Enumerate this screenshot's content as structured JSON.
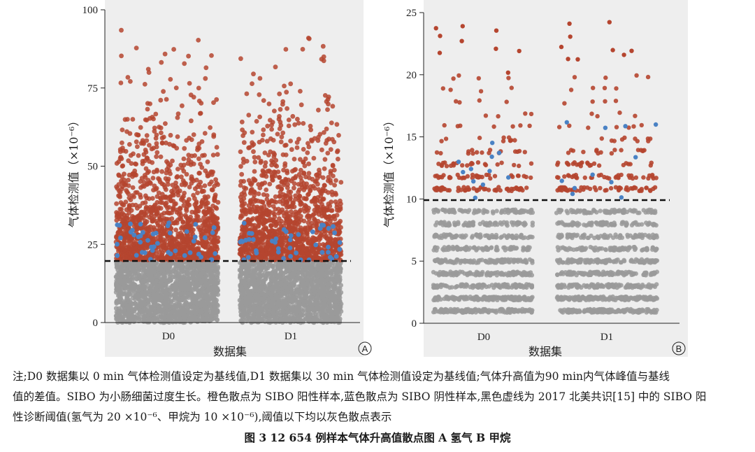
{
  "chart_data": [
    {
      "type": "scatter",
      "panel_label": "A",
      "xlabel": "数据集",
      "ylabel": "气体检测值（×10⁻⁶）",
      "categories": [
        "D0",
        "D1"
      ],
      "ylim": [
        0,
        100
      ],
      "yticks": [
        "0",
        "25",
        "50",
        "75",
        "100"
      ],
      "threshold": 20,
      "series": [
        {
          "name": "SIBO阳性样本",
          "color": "#b5452f",
          "range": [
            20,
            95
          ]
        },
        {
          "name": "SIBO阴性样本",
          "color": "#4a82c4",
          "range": [
            20,
            32
          ]
        },
        {
          "name": "阈值以下",
          "color": "#9a9a9a",
          "range": [
            0,
            20
          ]
        }
      ]
    },
    {
      "type": "scatter",
      "panel_label": "B",
      "xlabel": "数据集",
      "ylabel": "气体检测值（×10⁻⁶）",
      "categories": [
        "D0",
        "D1"
      ],
      "ylim": [
        0,
        25
      ],
      "yticks": [
        "0",
        "5",
        "10",
        "15",
        "20",
        "25"
      ],
      "threshold": 10,
      "series": [
        {
          "name": "SIBO阳性样本",
          "color": "#b5452f",
          "range": [
            10,
            24.3
          ]
        },
        {
          "name": "SIBO阴性样本",
          "color": "#4a82c4",
          "range": [
            10,
            16.3
          ]
        },
        {
          "name": "阈值以下",
          "color": "#9a9a9a",
          "range": [
            0,
            10
          ]
        }
      ]
    }
  ],
  "caption": {
    "line1": "注;D0 数据集以 0 min 气体检测值设定为基线值,D1 数据集以 30 min 气体检测值设定为基线值;气体升高值为90 min内气体峰值与基线",
    "line2": "值的差值。SIBO 为小肠细菌过度生长。橙色散点为 SIBO 阳性样本,蓝色散点为 SIBO 阴性样本,黑色虚线为 2017 北美共识[15] 中的 SIBO 阳",
    "line3": "性诊断阈值(氢气为 20 ×10⁻⁶、甲烷为 10 ×10⁻⁶),阈值以下均以灰色散点表示",
    "title": "图 3   12 654 例样本气体升高值散点图   A   氢气   B   甲烷"
  }
}
